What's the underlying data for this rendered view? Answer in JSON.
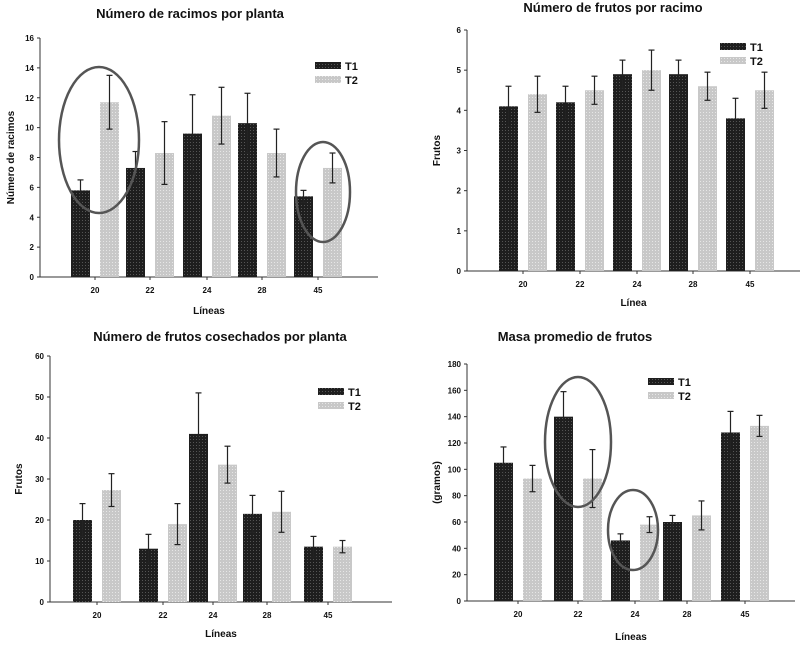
{
  "colors": {
    "T1": "#1e1e1e",
    "T2": "#c8c8c8",
    "highlight_ellipse": "#555555"
  },
  "chart_data": [
    {
      "type": "bar",
      "title": "Número de racimos por planta",
      "xlabel": "Líneas",
      "ylabel": "Número de racimos",
      "categories": [
        "20",
        "22",
        "24",
        "28",
        "45"
      ],
      "ylim": [
        0,
        16
      ],
      "yticks": [
        0,
        2,
        4,
        6,
        8,
        10,
        12,
        14,
        16
      ],
      "legend": "top-right",
      "grid": false,
      "series": [
        {
          "name": "T1",
          "values": [
            5.8,
            7.3,
            9.6,
            10.3,
            5.4
          ],
          "errors": [
            0.7,
            1.1,
            2.6,
            2.0,
            0.4
          ]
        },
        {
          "name": "T2",
          "values": [
            11.7,
            8.3,
            10.8,
            8.3,
            7.3
          ],
          "errors": [
            1.8,
            2.1,
            1.9,
            1.6,
            1.0
          ]
        }
      ],
      "highlights": [
        "20",
        "45"
      ]
    },
    {
      "type": "bar",
      "title": "Número de frutos por racimo",
      "xlabel": "Línea",
      "ylabel": "Frutos",
      "categories": [
        "20",
        "22",
        "24",
        "28",
        "45"
      ],
      "ylim": [
        0,
        6
      ],
      "yticks": [
        0,
        1,
        2,
        3,
        4,
        5,
        6
      ],
      "legend": "top-right",
      "grid": false,
      "series": [
        {
          "name": "T1",
          "values": [
            4.1,
            4.2,
            4.9,
            4.9,
            3.8
          ],
          "errors": [
            0.5,
            0.4,
            0.35,
            0.35,
            0.5
          ]
        },
        {
          "name": "T2",
          "values": [
            4.4,
            4.5,
            5.0,
            4.6,
            4.5
          ],
          "errors": [
            0.45,
            0.35,
            0.5,
            0.35,
            0.45
          ]
        }
      ],
      "highlights": []
    },
    {
      "type": "bar",
      "title": "Número de frutos cosechados por planta",
      "xlabel": "Líneas",
      "ylabel": "Frutos",
      "categories": [
        "20",
        "22",
        "24",
        "28",
        "45"
      ],
      "ylim": [
        0,
        60
      ],
      "yticks": [
        0,
        10,
        20,
        30,
        40,
        50,
        60
      ],
      "legend": "top-right",
      "grid": false,
      "series": [
        {
          "name": "T1",
          "values": [
            20,
            13,
            41,
            21.5,
            13.5
          ],
          "errors": [
            4,
            3.5,
            10,
            4.5,
            2.5
          ]
        },
        {
          "name": "T2",
          "values": [
            27.3,
            19,
            33.5,
            22,
            13.5
          ],
          "errors": [
            4,
            5,
            4.5,
            5,
            1.5
          ]
        }
      ],
      "highlights": []
    },
    {
      "type": "bar",
      "title": "Masa promedio de frutos",
      "xlabel": "Líneas",
      "ylabel": "(gramos)",
      "categories": [
        "20",
        "22",
        "24",
        "28",
        "45"
      ],
      "ylim": [
        0,
        180
      ],
      "yticks": [
        0,
        20,
        40,
        60,
        80,
        100,
        120,
        140,
        160,
        180
      ],
      "legend": "top-right",
      "grid": false,
      "series": [
        {
          "name": "T1",
          "values": [
            105,
            140,
            46,
            60,
            128
          ],
          "errors": [
            12,
            19,
            5,
            5,
            16
          ]
        },
        {
          "name": "T2",
          "values": [
            93,
            93,
            58,
            65,
            133
          ],
          "errors": [
            10,
            22,
            6,
            11,
            8
          ]
        }
      ],
      "highlights": [
        "22",
        "24"
      ]
    }
  ]
}
